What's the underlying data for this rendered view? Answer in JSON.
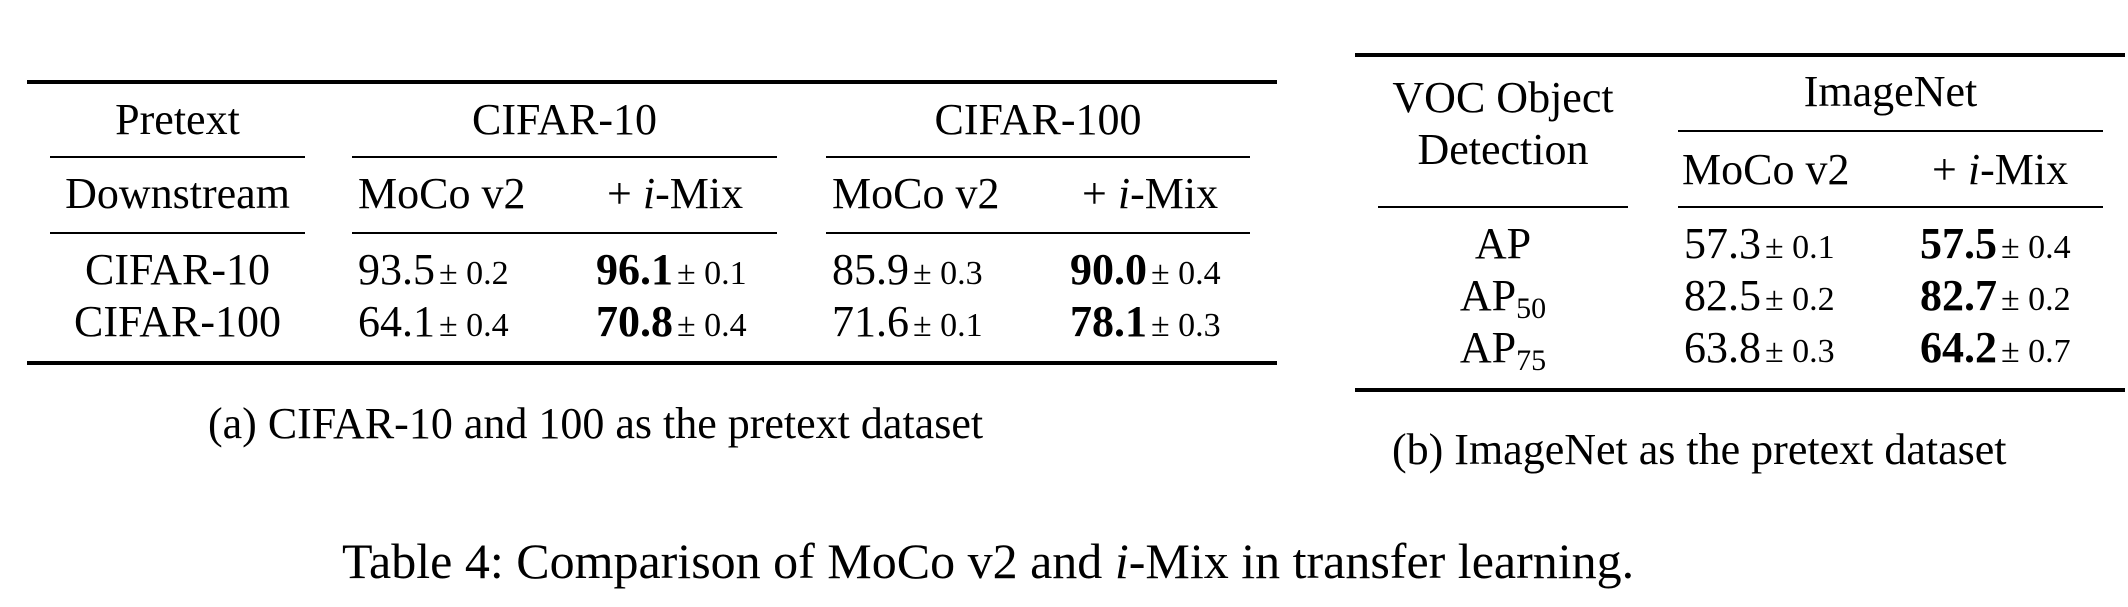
{
  "table_a": {
    "caption": "(a) CIFAR-10 and 100 as the pretext dataset",
    "header_pretext": "Pretext",
    "header_downstream": "Downstream",
    "groups": [
      {
        "name": "CIFAR-10"
      },
      {
        "name": "CIFAR-100"
      }
    ],
    "col_moco": "MoCo v2",
    "col_imix_prefix": "+ ",
    "col_imix_italic": "i",
    "col_imix_suffix": "-Mix",
    "pm": "±",
    "rows": [
      {
        "label": "CIFAR-10",
        "c10_moco": "93.5",
        "c10_moco_sd": "0.2",
        "c10_imix": "96.1",
        "c10_imix_sd": "0.1",
        "c100_moco": "85.9",
        "c100_moco_sd": "0.3",
        "c100_imix": "90.0",
        "c100_imix_sd": "0.4"
      },
      {
        "label": "CIFAR-100",
        "c10_moco": "64.1",
        "c10_moco_sd": "0.4",
        "c10_imix": "70.8",
        "c10_imix_sd": "0.4",
        "c100_moco": "71.6",
        "c100_moco_sd": "0.1",
        "c100_imix": "78.1",
        "c100_imix_sd": "0.3"
      }
    ]
  },
  "table_b": {
    "caption": "(b) ImageNet as the pretext dataset",
    "header_line1": "VOC Object",
    "header_line2": "Detection",
    "group": "ImageNet",
    "col_moco": "MoCo v2",
    "col_imix_prefix": "+ ",
    "col_imix_italic": "i",
    "col_imix_suffix": "-Mix",
    "rows": [
      {
        "label": "AP",
        "sub": "",
        "moco": "57.3",
        "moco_sd": "0.1",
        "imix": "57.5",
        "imix_sd": "0.4"
      },
      {
        "label": "AP",
        "sub": "50",
        "moco": "82.5",
        "moco_sd": "0.2",
        "imix": "82.7",
        "imix_sd": "0.2"
      },
      {
        "label": "AP",
        "sub": "75",
        "moco": "63.8",
        "moco_sd": "0.3",
        "imix": "64.2",
        "imix_sd": "0.7"
      }
    ]
  },
  "caption": {
    "prefix": "Table 4: Comparison of MoCo v2 and ",
    "italic": "i",
    "suffix": "-Mix in transfer learning."
  }
}
